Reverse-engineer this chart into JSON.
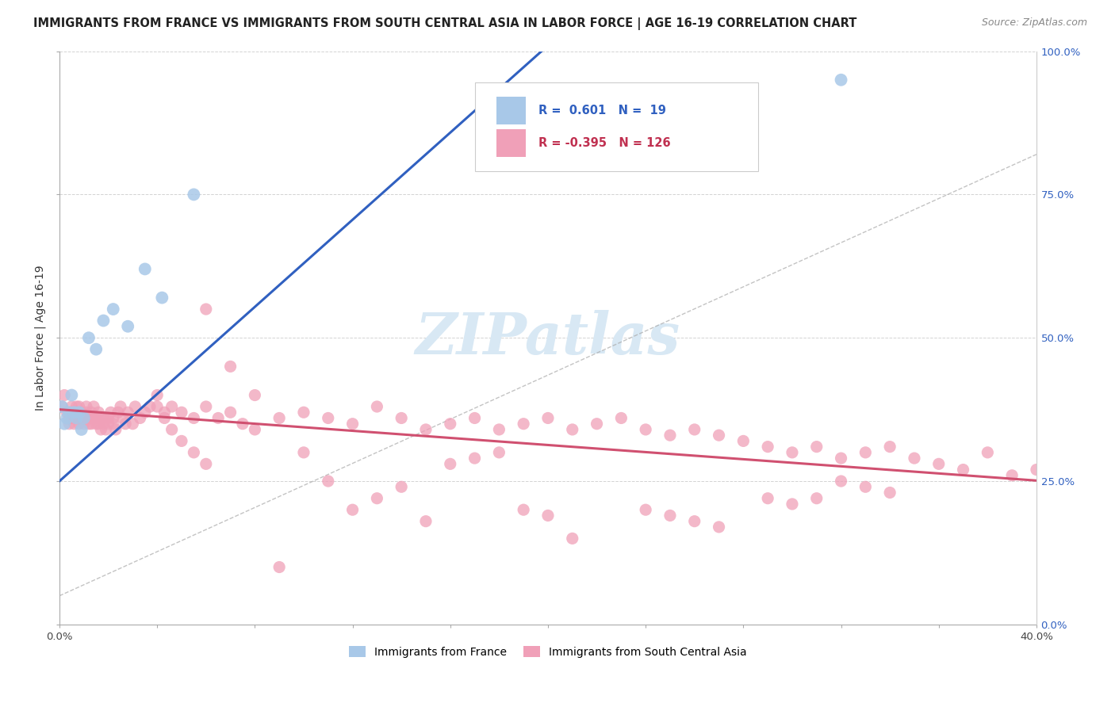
{
  "title": "IMMIGRANTS FROM FRANCE VS IMMIGRANTS FROM SOUTH CENTRAL ASIA IN LABOR FORCE | AGE 16-19 CORRELATION CHART",
  "source": "Source: ZipAtlas.com",
  "ylabel": "In Labor Force | Age 16-19",
  "xlim": [
    0.0,
    0.4
  ],
  "ylim": [
    0.0,
    1.0
  ],
  "france_R": 0.601,
  "france_N": 19,
  "asia_R": -0.395,
  "asia_N": 126,
  "france_color": "#a8c8e8",
  "france_line_color": "#3060c0",
  "asia_color": "#f0a0b8",
  "asia_line_color": "#d05070",
  "dash_color": "#aaaaaa",
  "watermark_color": "#d8e8f4",
  "france_x": [
    0.001,
    0.002,
    0.003,
    0.004,
    0.005,
    0.006,
    0.007,
    0.008,
    0.009,
    0.01,
    0.012,
    0.015,
    0.018,
    0.022,
    0.028,
    0.035,
    0.042,
    0.055,
    0.32
  ],
  "france_y": [
    0.38,
    0.35,
    0.36,
    0.37,
    0.4,
    0.37,
    0.36,
    0.37,
    0.34,
    0.36,
    0.5,
    0.48,
    0.53,
    0.55,
    0.52,
    0.62,
    0.57,
    0.75,
    0.95
  ],
  "asia_x": [
    0.001,
    0.002,
    0.003,
    0.004,
    0.004,
    0.005,
    0.005,
    0.005,
    0.006,
    0.006,
    0.007,
    0.007,
    0.008,
    0.008,
    0.008,
    0.009,
    0.009,
    0.01,
    0.01,
    0.011,
    0.011,
    0.012,
    0.012,
    0.013,
    0.013,
    0.014,
    0.014,
    0.015,
    0.015,
    0.016,
    0.016,
    0.017,
    0.017,
    0.018,
    0.018,
    0.019,
    0.02,
    0.02,
    0.021,
    0.022,
    0.022,
    0.023,
    0.024,
    0.025,
    0.026,
    0.027,
    0.028,
    0.03,
    0.031,
    0.033,
    0.035,
    0.037,
    0.04,
    0.043,
    0.046,
    0.05,
    0.055,
    0.06,
    0.065,
    0.07,
    0.075,
    0.08,
    0.09,
    0.1,
    0.11,
    0.12,
    0.13,
    0.14,
    0.15,
    0.16,
    0.17,
    0.18,
    0.19,
    0.2,
    0.21,
    0.22,
    0.23,
    0.24,
    0.25,
    0.26,
    0.27,
    0.28,
    0.29,
    0.3,
    0.31,
    0.32,
    0.33,
    0.34,
    0.35,
    0.36,
    0.37,
    0.38,
    0.39,
    0.4,
    0.29,
    0.3,
    0.31,
    0.32,
    0.33,
    0.34,
    0.24,
    0.25,
    0.26,
    0.27,
    0.16,
    0.17,
    0.18,
    0.19,
    0.2,
    0.21,
    0.1,
    0.11,
    0.12,
    0.13,
    0.14,
    0.15,
    0.06,
    0.07,
    0.08,
    0.09,
    0.04,
    0.043,
    0.046,
    0.05,
    0.055,
    0.06
  ],
  "asia_y": [
    0.38,
    0.4,
    0.37,
    0.36,
    0.35,
    0.38,
    0.36,
    0.37,
    0.35,
    0.36,
    0.38,
    0.36,
    0.37,
    0.35,
    0.38,
    0.36,
    0.37,
    0.35,
    0.36,
    0.38,
    0.37,
    0.35,
    0.36,
    0.37,
    0.35,
    0.36,
    0.38,
    0.35,
    0.36,
    0.37,
    0.35,
    0.36,
    0.34,
    0.35,
    0.36,
    0.34,
    0.35,
    0.36,
    0.37,
    0.35,
    0.36,
    0.34,
    0.37,
    0.38,
    0.36,
    0.35,
    0.37,
    0.35,
    0.38,
    0.36,
    0.37,
    0.38,
    0.4,
    0.37,
    0.38,
    0.37,
    0.36,
    0.38,
    0.36,
    0.37,
    0.35,
    0.34,
    0.36,
    0.37,
    0.36,
    0.35,
    0.38,
    0.36,
    0.34,
    0.35,
    0.36,
    0.34,
    0.35,
    0.36,
    0.34,
    0.35,
    0.36,
    0.34,
    0.33,
    0.34,
    0.33,
    0.32,
    0.31,
    0.3,
    0.31,
    0.29,
    0.3,
    0.31,
    0.29,
    0.28,
    0.27,
    0.3,
    0.26,
    0.27,
    0.22,
    0.21,
    0.22,
    0.25,
    0.24,
    0.23,
    0.2,
    0.19,
    0.18,
    0.17,
    0.28,
    0.29,
    0.3,
    0.2,
    0.19,
    0.15,
    0.3,
    0.25,
    0.2,
    0.22,
    0.24,
    0.18,
    0.55,
    0.45,
    0.4,
    0.1,
    0.38,
    0.36,
    0.34,
    0.32,
    0.3,
    0.28
  ]
}
